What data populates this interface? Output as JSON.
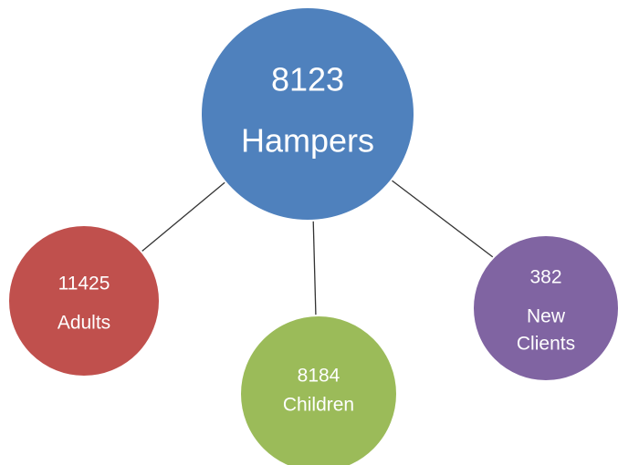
{
  "nodes": [
    {
      "number": 8123,
      "label": [
        "Hampers"
      ]
    },
    {
      "number": 11425,
      "label": [
        "Adults"
      ]
    },
    {
      "number": 8184,
      "label": [
        "Children"
      ]
    },
    {
      "number": 382,
      "label": [
        "New",
        "Clients"
      ]
    }
  ]
}
